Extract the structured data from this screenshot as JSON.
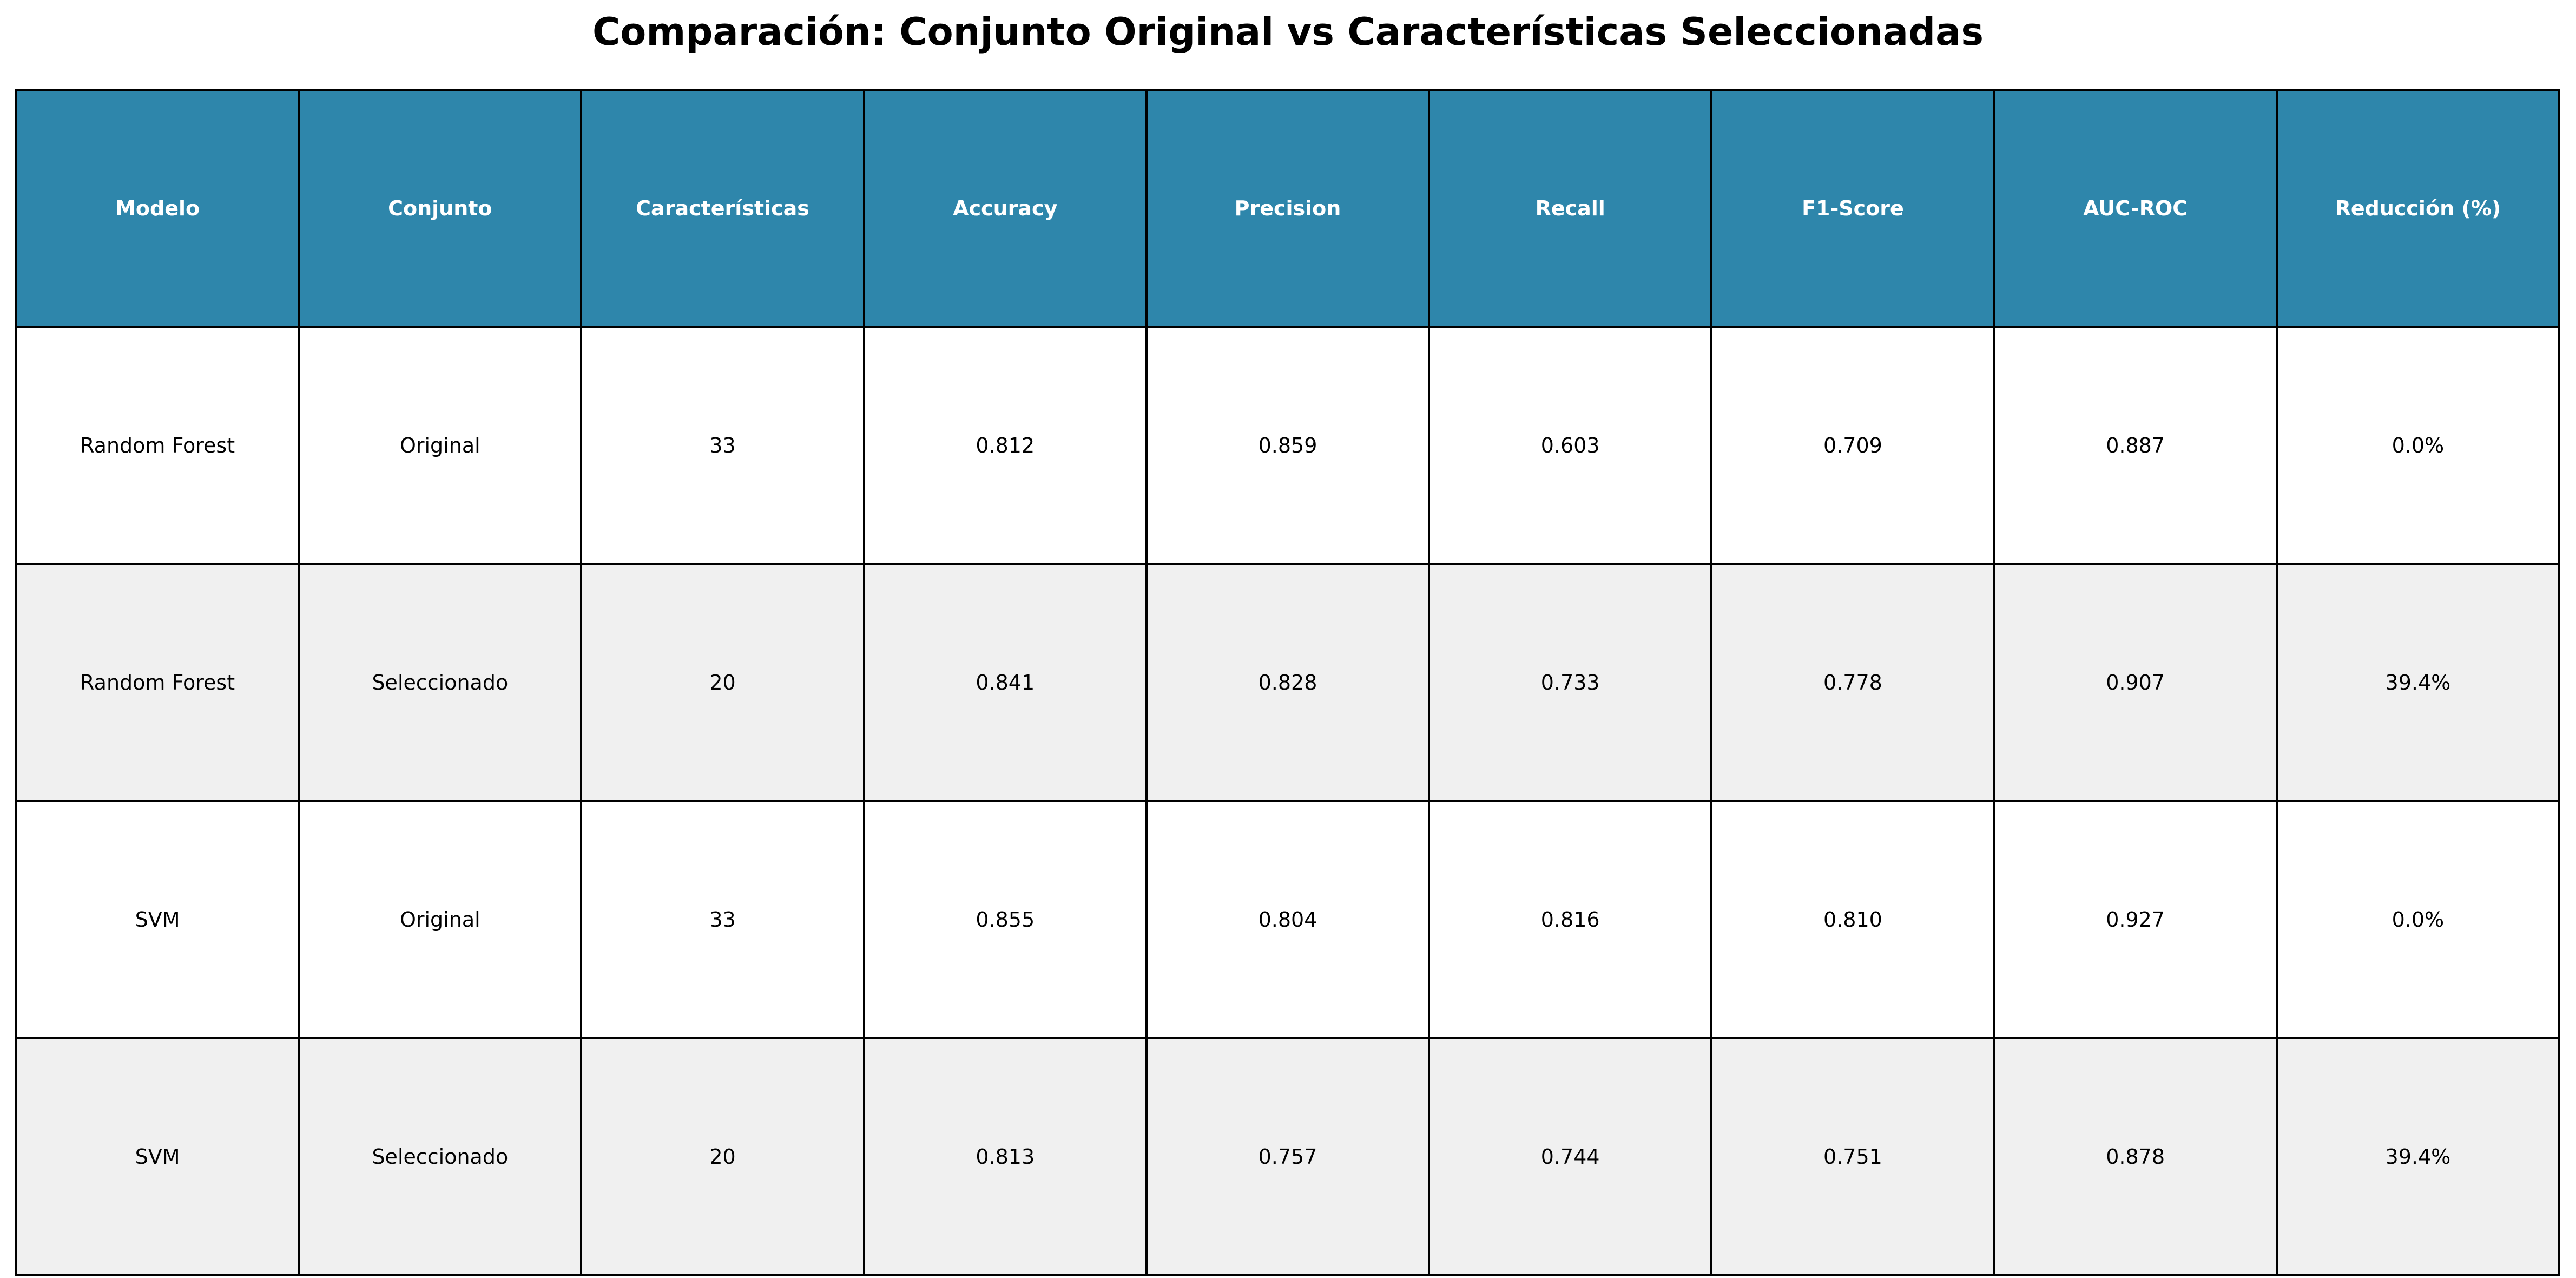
{
  "chart_data": {
    "type": "table",
    "title": "Comparación: Conjunto Original vs Características Seleccionadas",
    "columns": [
      "Modelo",
      "Conjunto",
      "Características",
      "Accuracy",
      "Precision",
      "Recall",
      "F1-Score",
      "AUC-ROC",
      "Reducción (%)"
    ],
    "rows": [
      [
        "Random Forest",
        "Original",
        "33",
        "0.812",
        "0.859",
        "0.603",
        "0.709",
        "0.887",
        "0.0%"
      ],
      [
        "Random Forest",
        "Seleccionado",
        "20",
        "0.841",
        "0.828",
        "0.733",
        "0.778",
        "0.907",
        "39.4%"
      ],
      [
        "SVM",
        "Original",
        "33",
        "0.855",
        "0.804",
        "0.816",
        "0.810",
        "0.927",
        "0.0%"
      ],
      [
        "SVM",
        "Seleccionado",
        "20",
        "0.813",
        "0.757",
        "0.744",
        "0.751",
        "0.878",
        "39.4%"
      ]
    ],
    "header_color": "#2e86ab",
    "header_text_color": "#ffffff",
    "row_colors": [
      "#ffffff",
      "#f0f0f0"
    ],
    "border_color": "#000000"
  }
}
